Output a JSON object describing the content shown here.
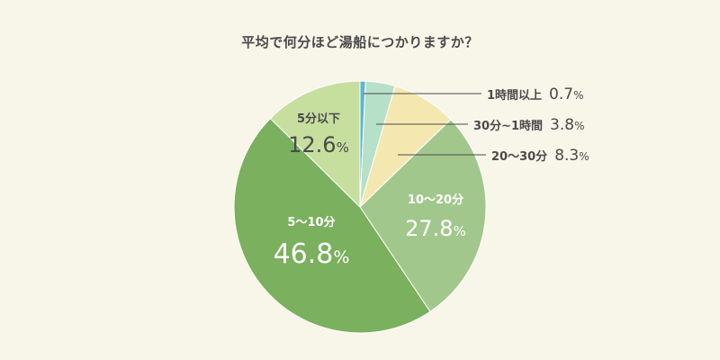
{
  "chart_data": {
    "type": "pie",
    "title": "平均で何分ほど湯船につかりますか？",
    "start": "12 o'clock, clockwise",
    "slices": [
      {
        "label": "1時間以上",
        "value": 0.7,
        "color": "#5bb7cc",
        "label_position": "outside"
      },
      {
        "label": "30分~1時間",
        "value": 3.8,
        "color": "#b7e0c9",
        "label_position": "outside"
      },
      {
        "label": "20〜30分",
        "value": 8.3,
        "color": "#f4e8b0",
        "label_position": "outside"
      },
      {
        "label": "10〜20分",
        "value": 27.8,
        "color": "#a2c78c",
        "label_position": "inside"
      },
      {
        "label": "5〜10分",
        "value": 46.8,
        "color": "#7bb05e",
        "label_position": "inside"
      },
      {
        "label": "5分以下",
        "value": 12.6,
        "color": "#c6df9f",
        "label_position": "inside"
      }
    ],
    "percent_unit": "%"
  },
  "colors": {
    "background": "#f8f5e9",
    "label_dark": "#4a4a4a",
    "label_light": "#ffffff",
    "leader_line": "#4a4a4a"
  }
}
